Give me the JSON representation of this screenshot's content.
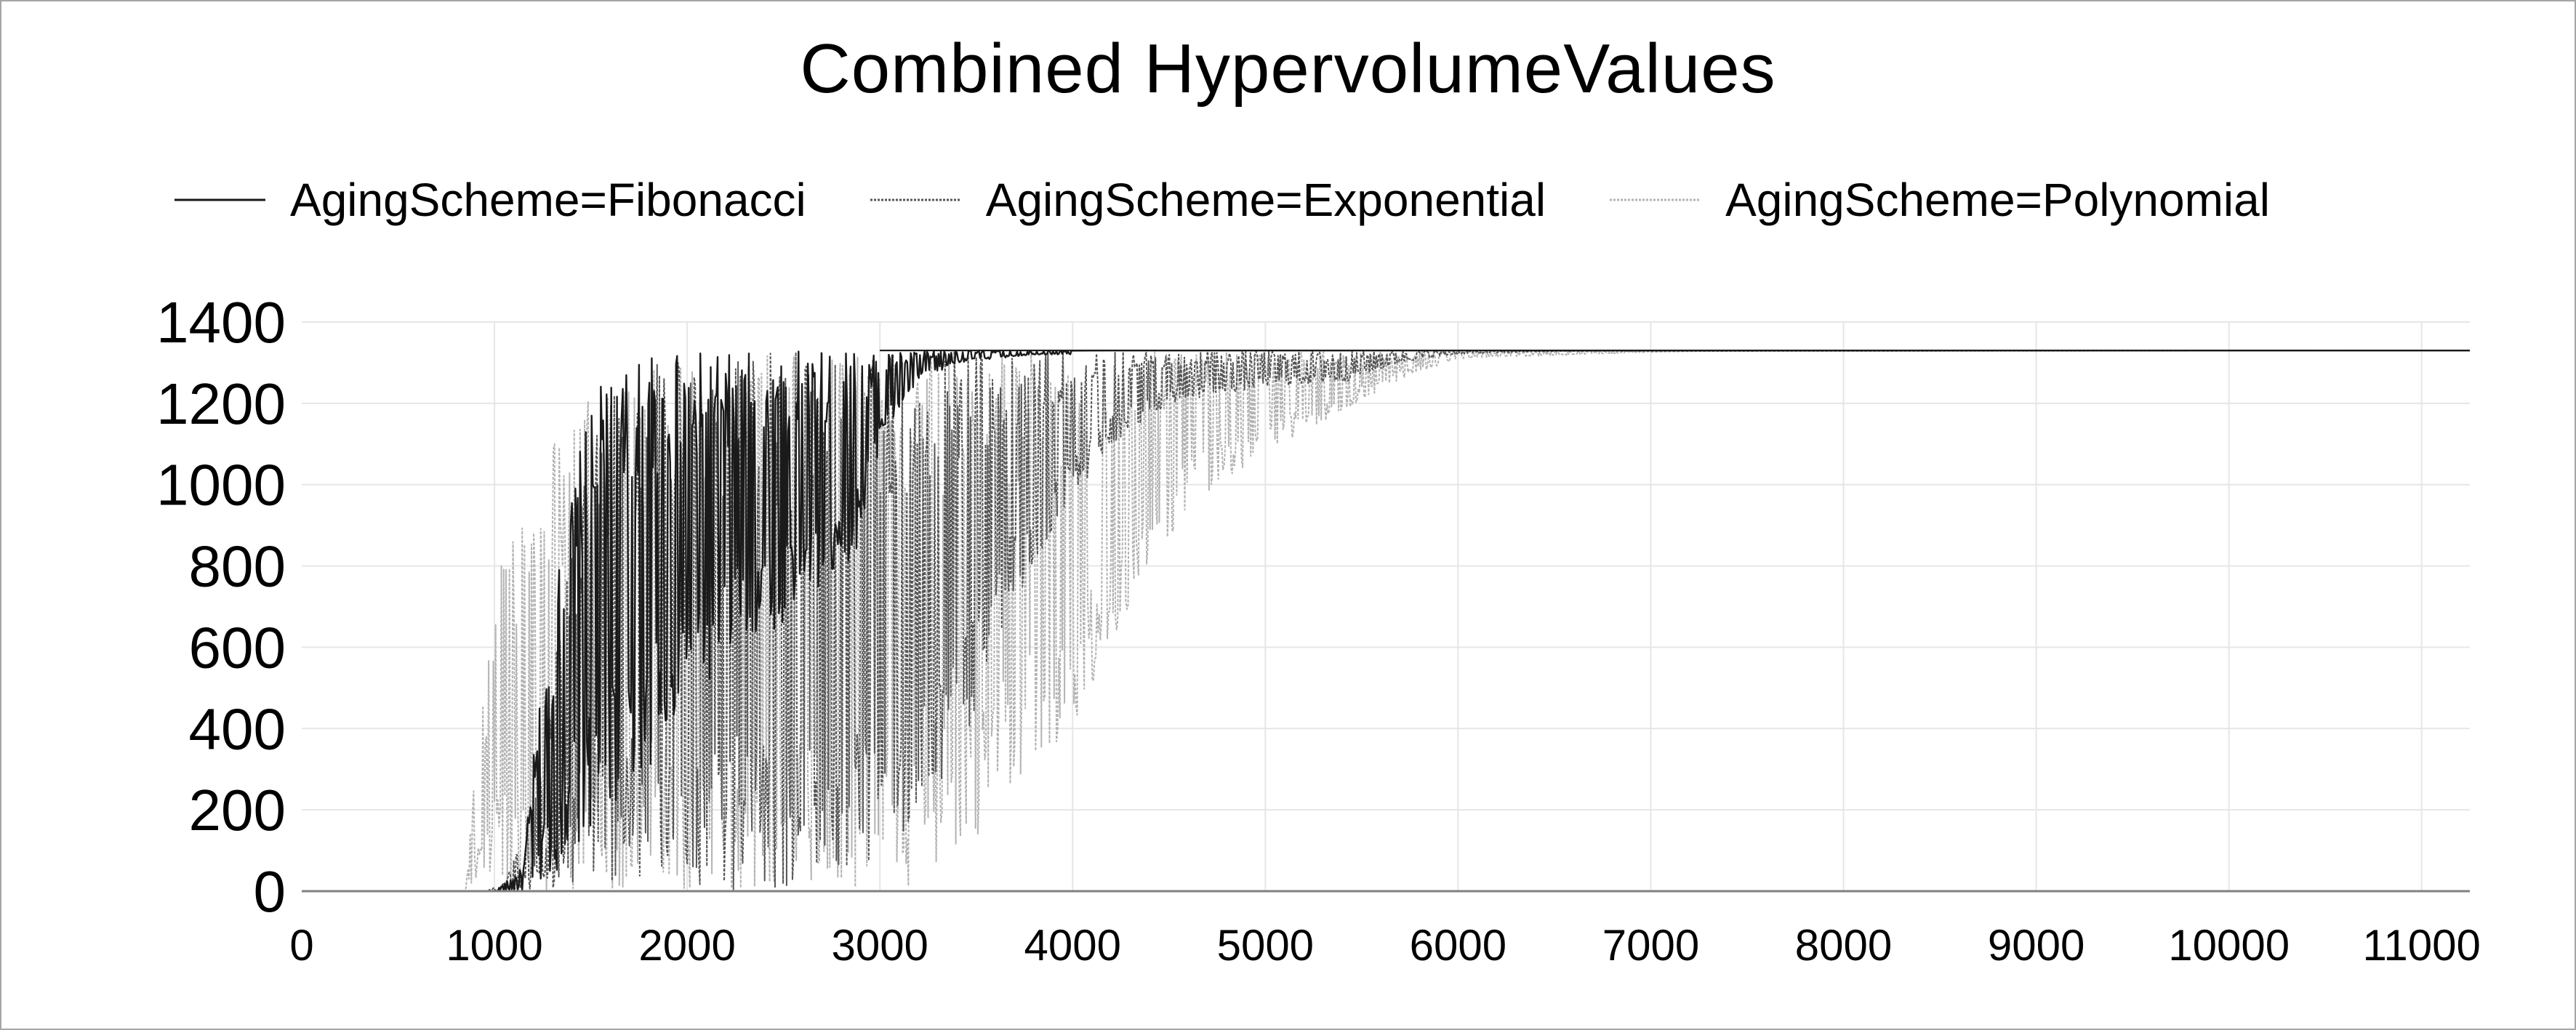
{
  "chart_data": {
    "type": "line",
    "title": "Combined HypervolumeValues",
    "xlabel": "",
    "ylabel": "",
    "xlim": [
      0,
      11250
    ],
    "ylim": [
      0,
      1400
    ],
    "x_ticks": [
      "0",
      "1000",
      "2000",
      "3000",
      "4000",
      "5000",
      "6000",
      "7000",
      "8000",
      "9000",
      "10000",
      "11000"
    ],
    "y_ticks": [
      "0",
      "200",
      "400",
      "600",
      "800",
      "1000",
      "1200",
      "1400"
    ],
    "grid": true,
    "legend_position": "top",
    "series": [
      {
        "name": "AgingScheme=Fibonacci",
        "color": "#1a1a1a",
        "style": "solid",
        "points": [
          [
            1000,
            0
          ],
          [
            1080,
            30
          ],
          [
            1150,
            60
          ],
          [
            1200,
            320
          ],
          [
            1250,
            520
          ],
          [
            1300,
            600
          ],
          [
            1350,
            900
          ],
          [
            1400,
            1000
          ],
          [
            1450,
            1100
          ],
          [
            1500,
            1180
          ],
          [
            1550,
            1240
          ],
          [
            1600,
            1290
          ],
          [
            1700,
            1310
          ],
          [
            1800,
            1320
          ],
          [
            2000,
            1325
          ],
          [
            2500,
            1328
          ],
          [
            3000,
            1330
          ],
          [
            11250,
            1330
          ]
        ],
        "lower_points": [
          [
            1000,
            0
          ],
          [
            1200,
            0
          ],
          [
            1400,
            80
          ],
          [
            1600,
            200
          ],
          [
            1800,
            300
          ],
          [
            2000,
            450
          ],
          [
            2200,
            550
          ],
          [
            2400,
            620
          ],
          [
            2600,
            700
          ],
          [
            2800,
            780
          ],
          [
            2900,
            860
          ],
          [
            3000,
            1100
          ],
          [
            3200,
            1250
          ],
          [
            3400,
            1300
          ],
          [
            3800,
            1320
          ],
          [
            11250,
            1330
          ]
        ]
      },
      {
        "name": "AgingScheme=Exponential",
        "color": "#555555",
        "style": "dotted",
        "points": [
          [
            950,
            0
          ],
          [
            1050,
            20
          ],
          [
            1150,
            150
          ],
          [
            1250,
            350
          ],
          [
            1350,
            700
          ],
          [
            1450,
            1000
          ],
          [
            1550,
            1180
          ],
          [
            1650,
            1260
          ],
          [
            1800,
            1300
          ],
          [
            2000,
            1318
          ],
          [
            2500,
            1325
          ],
          [
            3000,
            1328
          ],
          [
            11250,
            1330
          ]
        ],
        "lower_points": [
          [
            950,
            0
          ],
          [
            1500,
            0
          ],
          [
            2000,
            0
          ],
          [
            2500,
            0
          ],
          [
            3000,
            60
          ],
          [
            3300,
            200
          ],
          [
            3500,
            420
          ],
          [
            3600,
            600
          ],
          [
            3800,
            800
          ],
          [
            4000,
            960
          ],
          [
            4200,
            1100
          ],
          [
            4500,
            1200
          ],
          [
            5000,
            1240
          ],
          [
            5400,
            1250
          ],
          [
            5700,
            1300
          ],
          [
            6000,
            1322
          ],
          [
            6500,
            1328
          ],
          [
            11250,
            1330
          ]
        ]
      },
      {
        "name": "AgingScheme=Polynomial",
        "color": "#b3b3b3",
        "style": "dotted",
        "points": [
          [
            850,
            0
          ],
          [
            900,
            300
          ],
          [
            950,
            500
          ],
          [
            1000,
            750
          ],
          [
            1050,
            880
          ],
          [
            1150,
            950
          ],
          [
            1250,
            1050
          ],
          [
            1400,
            1180
          ],
          [
            1600,
            1270
          ],
          [
            1800,
            1300
          ],
          [
            2000,
            1312
          ],
          [
            2500,
            1322
          ],
          [
            3000,
            1326
          ],
          [
            11250,
            1330
          ]
        ],
        "lower_points": [
          [
            850,
            0
          ],
          [
            1600,
            0
          ],
          [
            2000,
            0
          ],
          [
            2600,
            0
          ],
          [
            3200,
            0
          ],
          [
            3500,
            120
          ],
          [
            3700,
            250
          ],
          [
            4000,
            400
          ],
          [
            4300,
            700
          ],
          [
            4600,
            950
          ],
          [
            5000,
            1080
          ],
          [
            5400,
            1180
          ],
          [
            5700,
            1260
          ],
          [
            6000,
            1310
          ],
          [
            7000,
            1326
          ],
          [
            11250,
            1330
          ]
        ]
      }
    ]
  }
}
